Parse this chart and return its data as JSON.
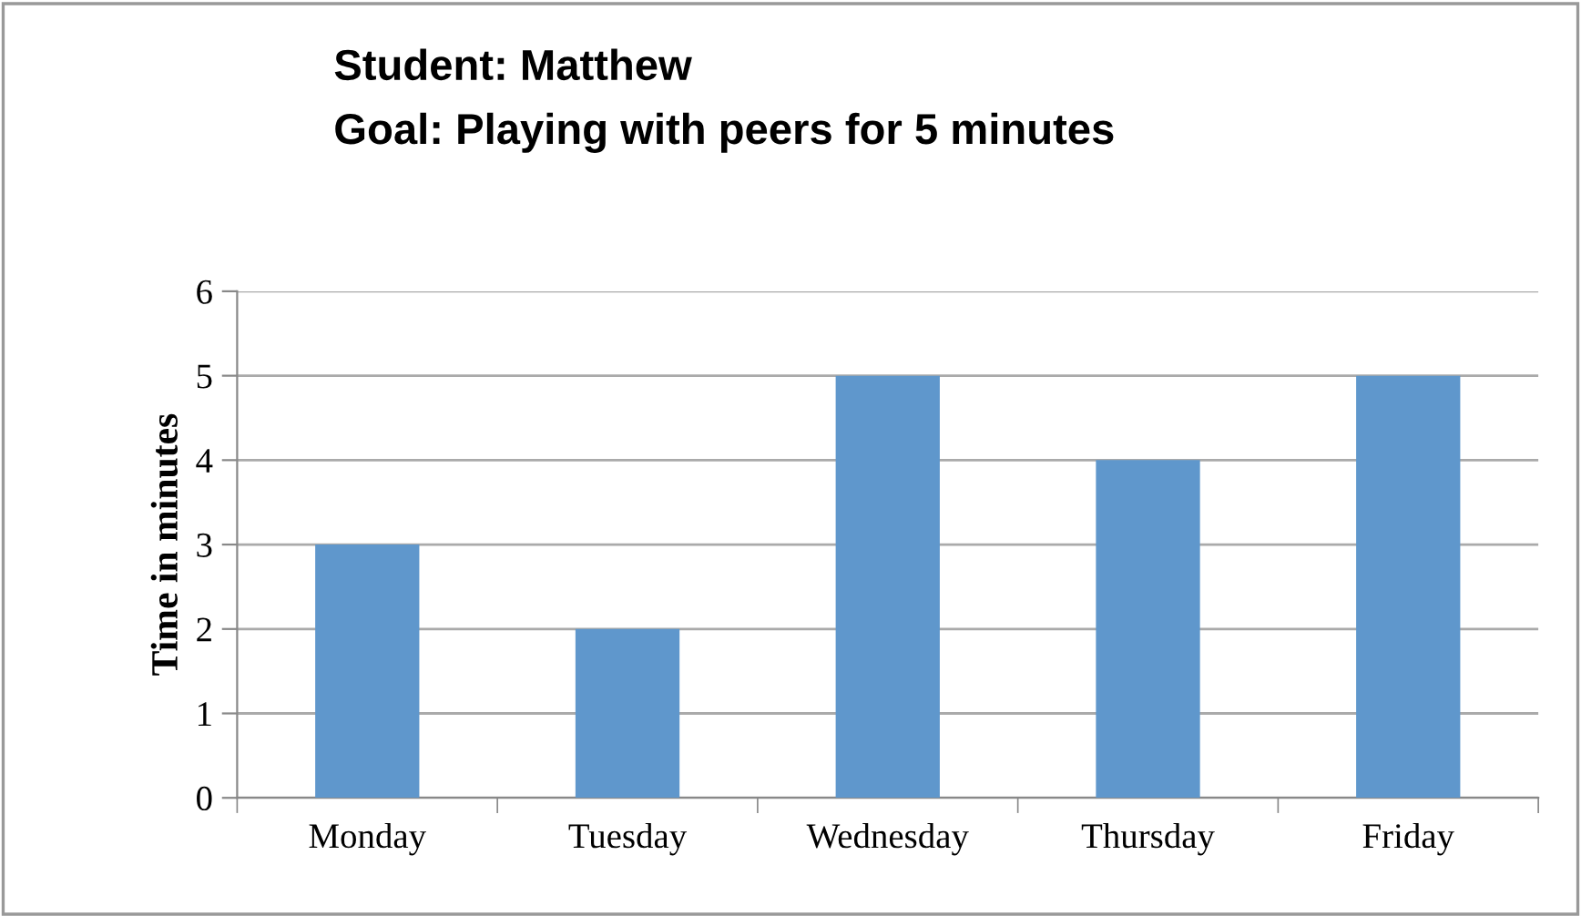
{
  "chart_data": {
    "type": "bar",
    "title": "Student: Matthew",
    "subtitle": "Goal: Playing with peers for 5 minutes",
    "ylabel": "Time in minutes",
    "categories": [
      "Monday",
      "Tuesday",
      "Wednesday",
      "Thursday",
      "Friday"
    ],
    "values": [
      3,
      2,
      5,
      4,
      5
    ],
    "color": "#5f97cc",
    "ylim": [
      0,
      6
    ],
    "yticks": [
      0,
      1,
      2,
      3,
      4,
      5,
      6
    ],
    "grid": "y",
    "legend": false
  }
}
